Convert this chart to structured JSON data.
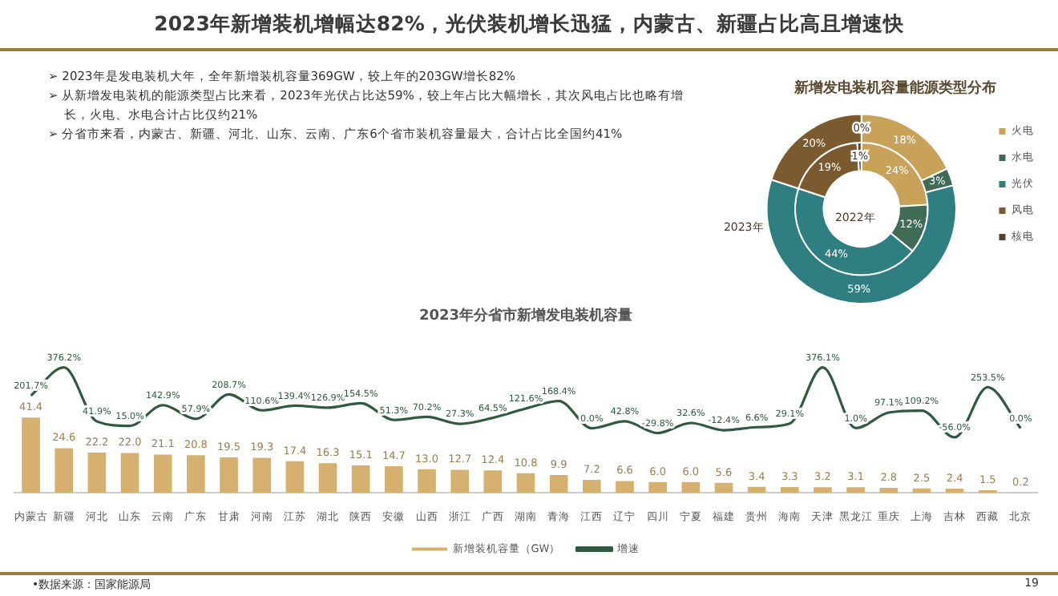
{
  "chart_data": [
    {
      "type": "donut",
      "title": "新增发电装机容量能源类型分布",
      "categories": [
        "火电",
        "水电",
        "光伏",
        "风电",
        "核电"
      ],
      "colors": [
        "#c9a25a",
        "#3f6b57",
        "#2f7f82",
        "#7a5a2e",
        "#5a4030"
      ],
      "series": [
        {
          "name": "2023年",
          "values": [
            18,
            3,
            59,
            20,
            0
          ],
          "value_labels": [
            "18%",
            "3%",
            "59%",
            "20%",
            "0%"
          ]
        },
        {
          "name": "2022年",
          "values": [
            24,
            12,
            44,
            19,
            1
          ],
          "value_labels": [
            "24%",
            "12%",
            "44%",
            "19%",
            "1%"
          ]
        }
      ],
      "legend": "right",
      "annotations": [
        "2023年新增装机增幅达82%，光伏装机增长迅猛，内蒙古、新疆占比高且增速快",
        "➢ 2023年是发电装机大年，全年新增装机容量369GW，较上年的203GW增长82%",
        "➢ 从新增发电装机的能源类型占比来看，2023年光伏占比达59%，较上年占比大幅增长，其次风电占比也略有增长，火电、水电合计占比仅约21%",
        "➢ 分省市来看，内蒙古、新疆、河北、山东、云南、广东6个省市装机容量最大，合计占比全国约41%"
      ]
    },
    {
      "type": "bar",
      "title": "2023年分省市新增发电装机容量",
      "categories": [
        "内蒙古",
        "新疆",
        "河北",
        "山东",
        "云南",
        "广东",
        "甘肃",
        "河南",
        "江苏",
        "湖北",
        "陕西",
        "安徽",
        "山西",
        "浙江",
        "广西",
        "湖南",
        "青海",
        "江西",
        "辽宁",
        "四川",
        "宁夏",
        "福建",
        "贵州",
        "海南",
        "天津",
        "黑龙江",
        "重庆",
        "上海",
        "吉林",
        "西藏",
        "北京"
      ],
      "series": [
        {
          "name": "新增装机容量（GW）",
          "type": "bar",
          "color": "#d6b06e",
          "values": [
            41.4,
            24.6,
            22.2,
            22.0,
            21.1,
            20.8,
            19.5,
            19.3,
            17.4,
            16.3,
            15.1,
            14.7,
            13.0,
            12.7,
            12.4,
            10.8,
            9.9,
            7.2,
            6.6,
            6.0,
            6.0,
            5.6,
            3.4,
            3.3,
            3.2,
            3.1,
            2.8,
            2.5,
            2.4,
            1.5,
            0.2
          ],
          "value_labels": [
            "41.4",
            "24.6",
            "22.2",
            "22.0",
            "21.1",
            "20.8",
            "19.5",
            "19.3",
            "17.4",
            "16.3",
            "15.1",
            "14.7",
            "13.0",
            "12.7",
            "12.4",
            "10.8",
            "9.9",
            "7.2",
            "6.6",
            "6.0",
            "6.0",
            "5.6",
            "3.4",
            "3.3",
            "3.2",
            "3.1",
            "2.8",
            "2.5",
            "2.4",
            "1.5",
            "0.2"
          ]
        },
        {
          "name": "增速",
          "type": "line",
          "axis": "y2",
          "color": "#2f5a40",
          "values": [
            201.7,
            376.2,
            41.9,
            15.0,
            142.9,
            57.9,
            208.7,
            110.6,
            139.4,
            126.9,
            154.5,
            51.3,
            70.2,
            27.3,
            64.5,
            121.6,
            168.4,
            0.0,
            42.8,
            -29.8,
            32.6,
            -12.4,
            6.6,
            29.1,
            376.1,
            1.0,
            97.1,
            109.2,
            -56.0,
            253.5,
            0.0
          ],
          "value_labels": [
            "201.7%",
            "376.2%",
            "41.9%",
            "15.0%",
            "142.9%",
            "57.9%",
            "208.7%",
            "110.6%",
            "139.4%",
            "126.9%",
            "154.5%",
            "51.3%",
            "70.2%",
            "27.3%",
            "64.5%",
            "121.6%",
            "168.4%",
            "0.0%",
            "42.8%",
            "-29.8%",
            "32.6%",
            "-12.4%",
            "6.6%",
            "29.1%",
            "376.1%",
            "1.0%",
            "97.1%",
            "109.2%",
            "-56.0%",
            "253.5%",
            "0.0%"
          ]
        }
      ],
      "legend": "bottom",
      "marker": "none",
      "tick_labels": "x",
      "annotations": [
        "•数据来源：国家能源局",
        "19"
      ]
    }
  ]
}
